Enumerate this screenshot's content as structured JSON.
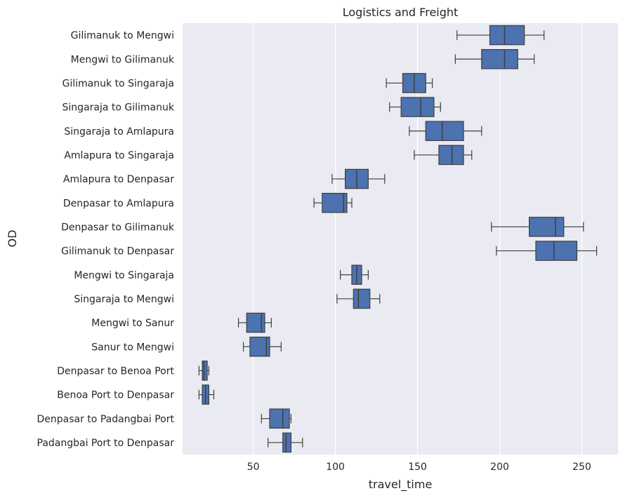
{
  "chart_data": {
    "type": "box",
    "orientation": "horizontal",
    "title": "Logistics and Freight",
    "xlabel": "travel_time",
    "ylabel": "OD",
    "xlim": [
      7,
      272
    ],
    "xticks": [
      50,
      100,
      150,
      200,
      250
    ],
    "grid": "vertical",
    "box_color": "#4c72b0",
    "background_color": "#eaeaf2",
    "categories": [
      "Gilimanuk to Mengwi",
      "Mengwi to Gilimanuk",
      "Gilimanuk to Singaraja",
      "Singaraja to Gilimanuk",
      "Singaraja to Amlapura",
      "Amlapura to Singaraja",
      "Amlapura to Denpasar",
      "Denpasar to Amlapura",
      "Denpasar to Gilimanuk",
      "Gilimanuk to Denpasar",
      "Mengwi to Singaraja",
      "Singaraja to Mengwi",
      "Mengwi to Sanur",
      "Sanur to Mengwi",
      "Denpasar to Benoa Port",
      "Benoa Port to Denpasar",
      "Denpasar to Padangbai Port",
      "Padangbai Port to Denpasar"
    ],
    "boxes": [
      {
        "whislo": 174,
        "q1": 194,
        "med": 203,
        "q3": 215,
        "whishi": 227
      },
      {
        "whislo": 173,
        "q1": 189,
        "med": 203,
        "q3": 211,
        "whishi": 221
      },
      {
        "whislo": 131,
        "q1": 141,
        "med": 148,
        "q3": 155,
        "whishi": 159
      },
      {
        "whislo": 133,
        "q1": 140,
        "med": 152,
        "q3": 160,
        "whishi": 164
      },
      {
        "whislo": 145,
        "q1": 155,
        "med": 165,
        "q3": 178,
        "whishi": 189
      },
      {
        "whislo": 148,
        "q1": 163,
        "med": 171,
        "q3": 178,
        "whishi": 183
      },
      {
        "whislo": 98,
        "q1": 106,
        "med": 113,
        "q3": 120,
        "whishi": 130
      },
      {
        "whislo": 87,
        "q1": 92,
        "med": 105,
        "q3": 107,
        "whishi": 110
      },
      {
        "whislo": 195,
        "q1": 218,
        "med": 234,
        "q3": 239,
        "whishi": 251
      },
      {
        "whislo": 198,
        "q1": 222,
        "med": 233,
        "q3": 247,
        "whishi": 259
      },
      {
        "whislo": 103,
        "q1": 110,
        "med": 113,
        "q3": 116,
        "whishi": 120
      },
      {
        "whislo": 101,
        "q1": 111,
        "med": 114,
        "q3": 121,
        "whishi": 127
      },
      {
        "whislo": 41,
        "q1": 46,
        "med": 55,
        "q3": 57,
        "whishi": 61
      },
      {
        "whislo": 44,
        "q1": 48,
        "med": 58,
        "q3": 60,
        "whishi": 67
      },
      {
        "whislo": 17,
        "q1": 19,
        "med": 20,
        "q3": 22,
        "whishi": 23
      },
      {
        "whislo": 17,
        "q1": 19,
        "med": 21,
        "q3": 23,
        "whishi": 26
      },
      {
        "whislo": 55,
        "q1": 60,
        "med": 68,
        "q3": 72,
        "whishi": 73
      },
      {
        "whislo": 59,
        "q1": 68,
        "med": 70,
        "q3": 73,
        "whishi": 80
      }
    ]
  }
}
